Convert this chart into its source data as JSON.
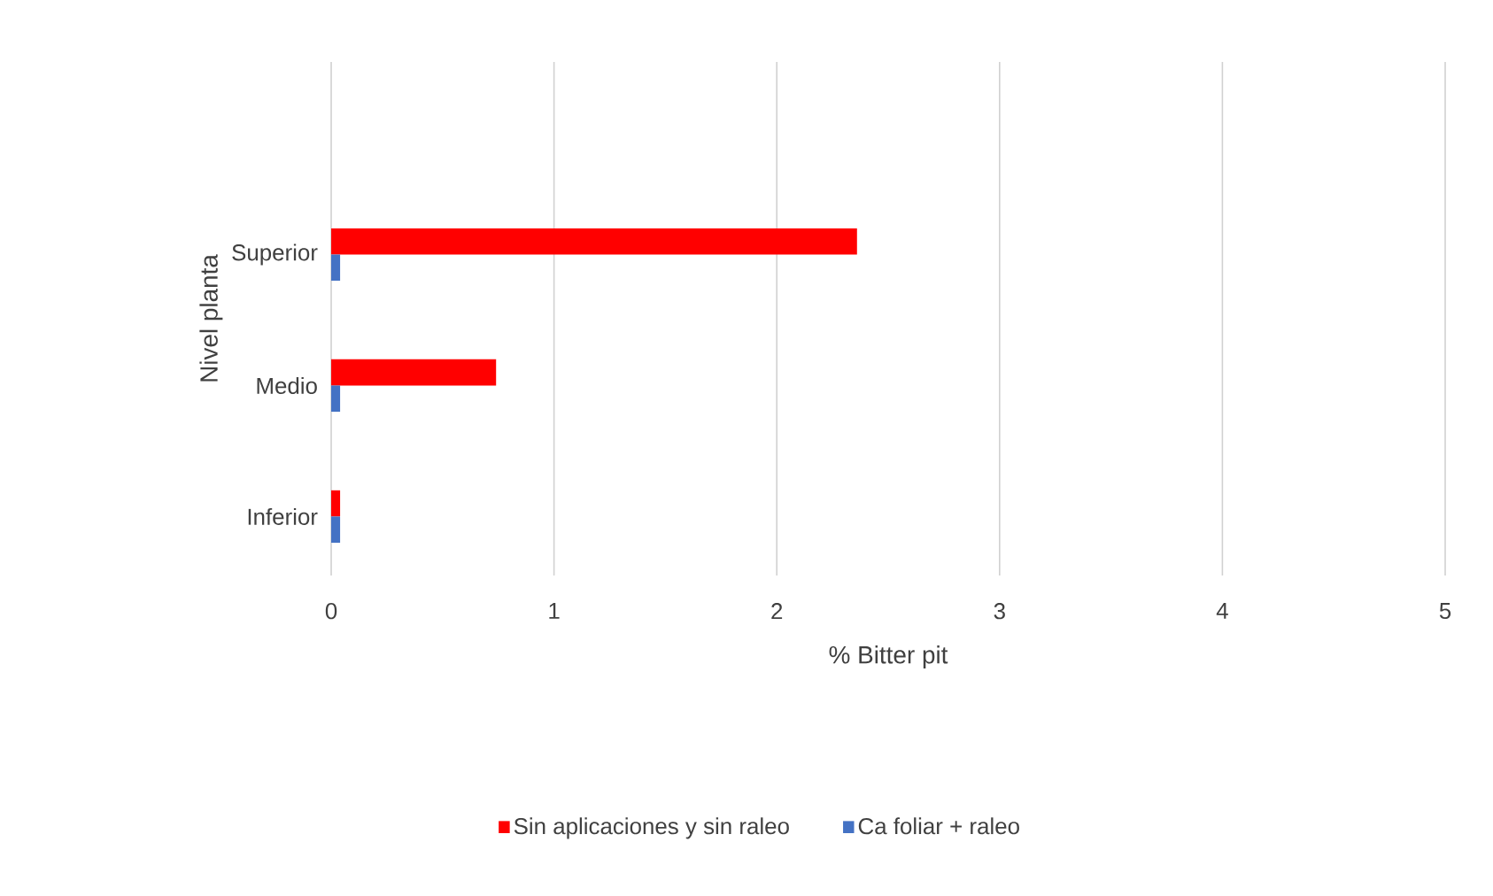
{
  "chart_data": {
    "type": "bar",
    "orientation": "horizontal",
    "xlabel": "% Bitter pit",
    "ylabel": "Nivel planta",
    "categories": [
      "Superior",
      "Medio",
      "Inferior"
    ],
    "series": [
      {
        "name": "Sin aplicaciones y sin raleo",
        "color": "#ff0000",
        "values": [
          2.36,
          0.74,
          0.04
        ]
      },
      {
        "name": "Ca foliar + raleo",
        "color": "#4472c4",
        "values": [
          0.04,
          0.04,
          0.04
        ]
      }
    ],
    "xlim": [
      0,
      5
    ],
    "xticks": [
      0,
      1,
      2,
      3,
      4,
      5
    ],
    "grid": "x",
    "legend": "bottom"
  }
}
